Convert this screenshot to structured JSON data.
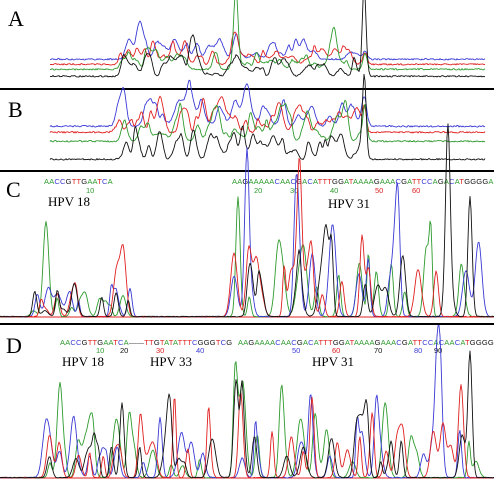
{
  "colors": {
    "A": "#2e9b2e",
    "C": "#3a3ad6",
    "G": "#111111",
    "T": "#e02020",
    "divider": "#000000",
    "baseline": "#e02020"
  },
  "panels": {
    "A": {
      "letter": "A"
    },
    "B": {
      "letter": "B"
    },
    "C": {
      "letter": "C",
      "labels": {
        "hpv18": "HPV 18",
        "hpv31": "HPV 31"
      },
      "seq_left": "AACCGTTGAATCA",
      "seq_right": "AAGAAAAACAACGACATTTGGATAAAAGAAACGATTCCAGACATGGGGAGG",
      "pos_left": [
        "10"
      ],
      "pos_right": [
        "20",
        "30",
        "40",
        "50",
        "60"
      ]
    },
    "D": {
      "letter": "D",
      "labels": {
        "hpv18": "HPV 18",
        "hpv33": "HPV 33",
        "hpv31": "HPV 31"
      },
      "seq_left": "AACCGTTGAATCA——TTGTATATTTCGGGTCG",
      "seq_right": "AAGAAAACAACGACATTTGGATAAAAGAAACGATTCCACAACATGGGGAGG",
      "pos_left": [
        "10",
        "20",
        "30",
        "40"
      ],
      "pos_right": [
        "50",
        "60",
        "70",
        "80",
        "90"
      ]
    }
  }
}
